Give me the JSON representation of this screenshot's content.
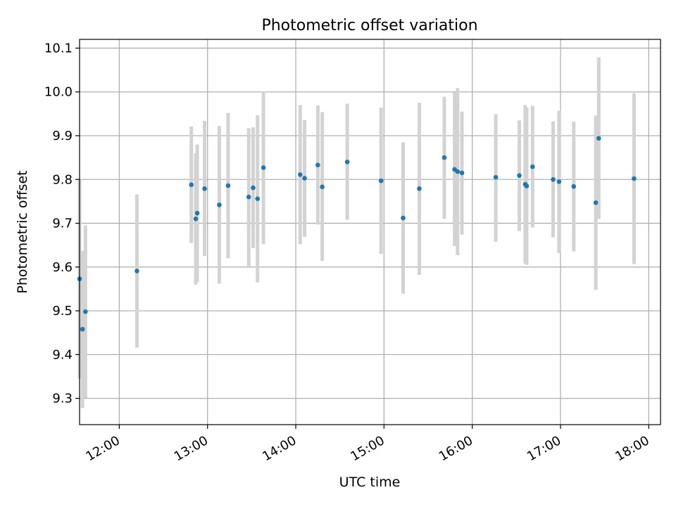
{
  "chart_data": {
    "type": "scatter",
    "title": "Photometric offset variation",
    "xlabel": "UTC time",
    "ylabel": "Photometric offset",
    "x_ticks": [
      "12:00",
      "13:00",
      "14:00",
      "15:00",
      "16:00",
      "17:00",
      "18:00"
    ],
    "y_ticks": [
      "9.3",
      "9.4",
      "9.5",
      "9.6",
      "9.7",
      "9.8",
      "9.9",
      "10.0",
      "10.1"
    ],
    "xlim": [
      "11:33",
      "18:08"
    ],
    "ylim": [
      9.24,
      10.12
    ],
    "grid": true,
    "colors": {
      "points": "#1f77b4",
      "error_bars": "#d3d3d3",
      "grid": "#b0b0b0"
    },
    "series": [
      {
        "points": [
          {
            "x": "11:33",
            "y": 9.573,
            "ylo": 9.345,
            "yhi": 9.8
          },
          {
            "x": "11:35",
            "y": 9.458,
            "ylo": 9.278,
            "yhi": 9.637
          },
          {
            "x": "11:37",
            "y": 9.498,
            "ylo": 9.301,
            "yhi": 9.695
          },
          {
            "x": "12:12",
            "y": 9.591,
            "ylo": 9.416,
            "yhi": 9.766
          },
          {
            "x": "12:49",
            "y": 9.788,
            "ylo": 9.655,
            "yhi": 9.921
          },
          {
            "x": "12:52",
            "y": 9.71,
            "ylo": 9.56,
            "yhi": 9.86
          },
          {
            "x": "12:53",
            "y": 9.723,
            "ylo": 9.566,
            "yhi": 9.88
          },
          {
            "x": "12:58",
            "y": 9.779,
            "ylo": 9.625,
            "yhi": 9.934
          },
          {
            "x": "13:08",
            "y": 9.742,
            "ylo": 9.562,
            "yhi": 9.922
          },
          {
            "x": "13:14",
            "y": 9.786,
            "ylo": 9.62,
            "yhi": 9.952
          },
          {
            "x": "13:28",
            "y": 9.76,
            "ylo": 9.602,
            "yhi": 9.917
          },
          {
            "x": "13:31",
            "y": 9.781,
            "ylo": 9.643,
            "yhi": 9.919
          },
          {
            "x": "13:34",
            "y": 9.756,
            "ylo": 9.565,
            "yhi": 9.947
          },
          {
            "x": "13:38",
            "y": 9.827,
            "ylo": 9.652,
            "yhi": 10.001
          },
          {
            "x": "14:03",
            "y": 9.811,
            "ylo": 9.652,
            "yhi": 9.97
          },
          {
            "x": "14:06",
            "y": 9.803,
            "ylo": 9.669,
            "yhi": 9.936
          },
          {
            "x": "14:15",
            "y": 9.833,
            "ylo": 9.697,
            "yhi": 9.969
          },
          {
            "x": "14:18",
            "y": 9.783,
            "ylo": 9.614,
            "yhi": 9.954
          },
          {
            "x": "14:35",
            "y": 9.84,
            "ylo": 9.708,
            "yhi": 9.973
          },
          {
            "x": "14:58",
            "y": 9.797,
            "ylo": 9.63,
            "yhi": 9.964
          },
          {
            "x": "15:13",
            "y": 9.712,
            "ylo": 9.539,
            "yhi": 9.885
          },
          {
            "x": "15:24",
            "y": 9.779,
            "ylo": 9.582,
            "yhi": 9.975
          },
          {
            "x": "15:41",
            "y": 9.85,
            "ylo": 9.71,
            "yhi": 9.989
          },
          {
            "x": "15:48",
            "y": 9.823,
            "ylo": 9.648,
            "yhi": 9.999
          },
          {
            "x": "15:50",
            "y": 9.818,
            "ylo": 9.627,
            "yhi": 10.009
          },
          {
            "x": "15:53",
            "y": 9.815,
            "ylo": 9.674,
            "yhi": 9.955
          },
          {
            "x": "16:16",
            "y": 9.805,
            "ylo": 9.658,
            "yhi": 9.949
          },
          {
            "x": "16:32",
            "y": 9.809,
            "ylo": 9.682,
            "yhi": 9.935
          },
          {
            "x": "16:36",
            "y": 9.789,
            "ylo": 9.608,
            "yhi": 9.97
          },
          {
            "x": "16:37",
            "y": 9.785,
            "ylo": 9.605,
            "yhi": 9.964
          },
          {
            "x": "16:41",
            "y": 9.829,
            "ylo": 9.69,
            "yhi": 9.968
          },
          {
            "x": "16:55",
            "y": 9.8,
            "ylo": 9.668,
            "yhi": 9.933
          },
          {
            "x": "16:59",
            "y": 9.795,
            "ylo": 9.632,
            "yhi": 9.957
          },
          {
            "x": "17:09",
            "y": 9.784,
            "ylo": 9.636,
            "yhi": 9.932
          },
          {
            "x": "17:24",
            "y": 9.747,
            "ylo": 9.548,
            "yhi": 9.946
          },
          {
            "x": "17:26",
            "y": 9.894,
            "ylo": 9.71,
            "yhi": 10.079
          },
          {
            "x": "17:50",
            "y": 9.802,
            "ylo": 9.607,
            "yhi": 9.997
          }
        ]
      }
    ]
  }
}
